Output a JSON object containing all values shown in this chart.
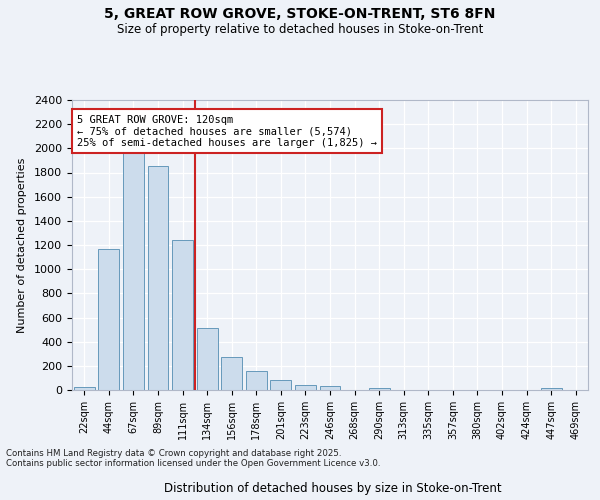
{
  "title_line1": "5, GREAT ROW GROVE, STOKE-ON-TRENT, ST6 8FN",
  "title_line2": "Size of property relative to detached houses in Stoke-on-Trent",
  "xlabel": "Distribution of detached houses by size in Stoke-on-Trent",
  "ylabel": "Number of detached properties",
  "categories": [
    "22sqm",
    "44sqm",
    "67sqm",
    "89sqm",
    "111sqm",
    "134sqm",
    "156sqm",
    "178sqm",
    "201sqm",
    "223sqm",
    "246sqm",
    "268sqm",
    "290sqm",
    "313sqm",
    "335sqm",
    "357sqm",
    "380sqm",
    "402sqm",
    "424sqm",
    "447sqm",
    "469sqm"
  ],
  "values": [
    25,
    1170,
    1970,
    1850,
    1240,
    510,
    270,
    155,
    85,
    45,
    35,
    0,
    20,
    0,
    0,
    0,
    0,
    0,
    0,
    15,
    0
  ],
  "bar_color": "#ccdcec",
  "bar_edge_color": "#6699bb",
  "vline_color": "#cc2222",
  "vline_x_index": 4,
  "ylim": [
    0,
    2400
  ],
  "yticks": [
    0,
    200,
    400,
    600,
    800,
    1000,
    1200,
    1400,
    1600,
    1800,
    2000,
    2200,
    2400
  ],
  "background_color": "#eef2f8",
  "grid_color": "#ffffff",
  "annotation_line1": "5 GREAT ROW GROVE: 120sqm",
  "annotation_line2": "← 75% of detached houses are smaller (5,574)",
  "annotation_line3": "25% of semi-detached houses are larger (1,825) →",
  "annotation_box_facecolor": "#ffffff",
  "annotation_box_edgecolor": "#cc2222",
  "footer_line1": "Contains HM Land Registry data © Crown copyright and database right 2025.",
  "footer_line2": "Contains public sector information licensed under the Open Government Licence v3.0."
}
